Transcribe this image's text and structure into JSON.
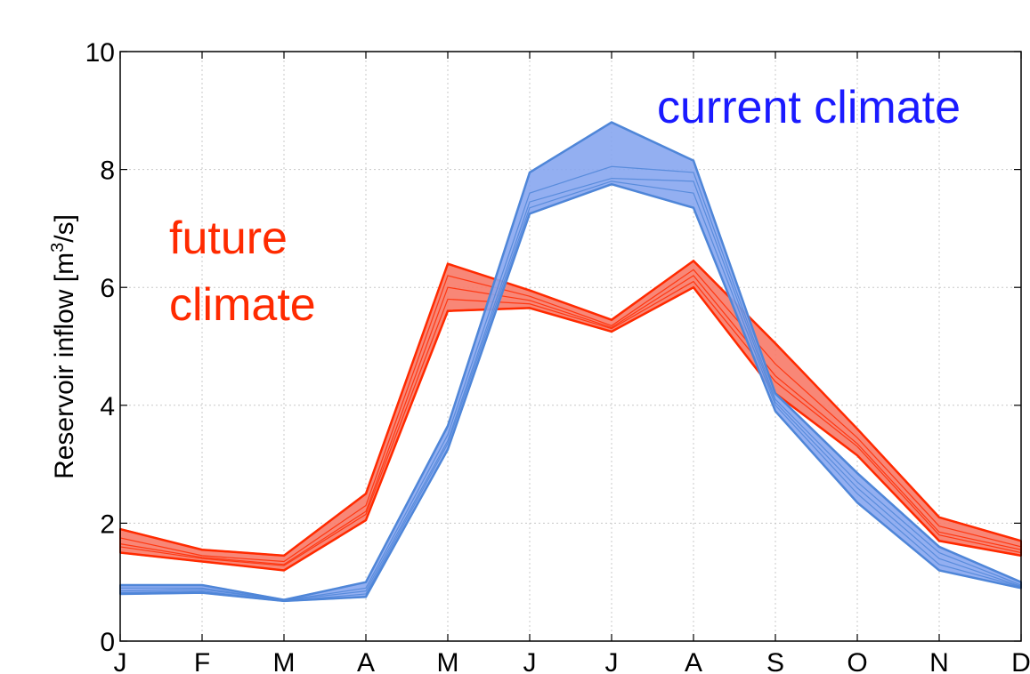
{
  "chart_data": {
    "type": "area",
    "ylabel": "Reservoir inflow [m",
    "ylabel_sup": "3",
    "ylabel_tail": "/s]",
    "categories": [
      "J",
      "F",
      "M",
      "A",
      "M",
      "J",
      "J",
      "A",
      "S",
      "O",
      "N",
      "D"
    ],
    "ylim": [
      0,
      10
    ],
    "yticks": [
      0,
      2,
      4,
      6,
      8,
      10
    ],
    "ytick_labels": [
      "0",
      "2",
      "4",
      "6",
      "8",
      "10"
    ],
    "grid": true,
    "annotations": {
      "future_line1": "future",
      "future_line2": "climate",
      "current": "current climate"
    },
    "series": [
      {
        "name": "future climate",
        "color": "#ff2a00",
        "fill": "#f77a68",
        "upper": [
          1.9,
          1.55,
          1.45,
          2.5,
          6.4,
          5.95,
          5.45,
          6.45,
          5.05,
          3.6,
          2.1,
          1.7
        ],
        "lower": [
          1.5,
          1.35,
          1.2,
          2.05,
          5.6,
          5.65,
          5.25,
          6.0,
          4.2,
          3.15,
          1.7,
          1.45
        ],
        "members": [
          [
            1.75,
            1.45,
            1.35,
            2.3,
            6.2,
            5.85,
            5.35,
            6.3,
            4.7,
            3.45,
            1.95,
            1.6
          ],
          [
            1.65,
            1.42,
            1.3,
            2.2,
            6.0,
            5.78,
            5.32,
            6.2,
            4.5,
            3.35,
            1.85,
            1.55
          ],
          [
            1.6,
            1.4,
            1.28,
            2.15,
            5.8,
            5.72,
            5.3,
            6.1,
            4.4,
            3.3,
            1.8,
            1.5
          ]
        ]
      },
      {
        "name": "current climate",
        "color": "#4f86d8",
        "fill": "#87a6ef",
        "upper": [
          0.95,
          0.95,
          0.7,
          1.0,
          3.65,
          7.95,
          8.8,
          8.15,
          4.2,
          2.85,
          1.6,
          1.0
        ],
        "lower": [
          0.8,
          0.82,
          0.68,
          0.75,
          3.25,
          7.25,
          7.75,
          7.35,
          3.9,
          2.35,
          1.2,
          0.9
        ],
        "members": [
          [
            0.9,
            0.9,
            0.69,
            0.9,
            3.5,
            7.6,
            8.05,
            7.95,
            4.1,
            2.7,
            1.5,
            0.95
          ],
          [
            0.85,
            0.88,
            0.69,
            0.85,
            3.4,
            7.45,
            7.85,
            7.8,
            4.05,
            2.6,
            1.4,
            0.93
          ],
          [
            0.82,
            0.85,
            0.68,
            0.8,
            3.35,
            7.35,
            7.8,
            7.6,
            4.0,
            2.5,
            1.3,
            0.92
          ]
        ]
      }
    ]
  }
}
